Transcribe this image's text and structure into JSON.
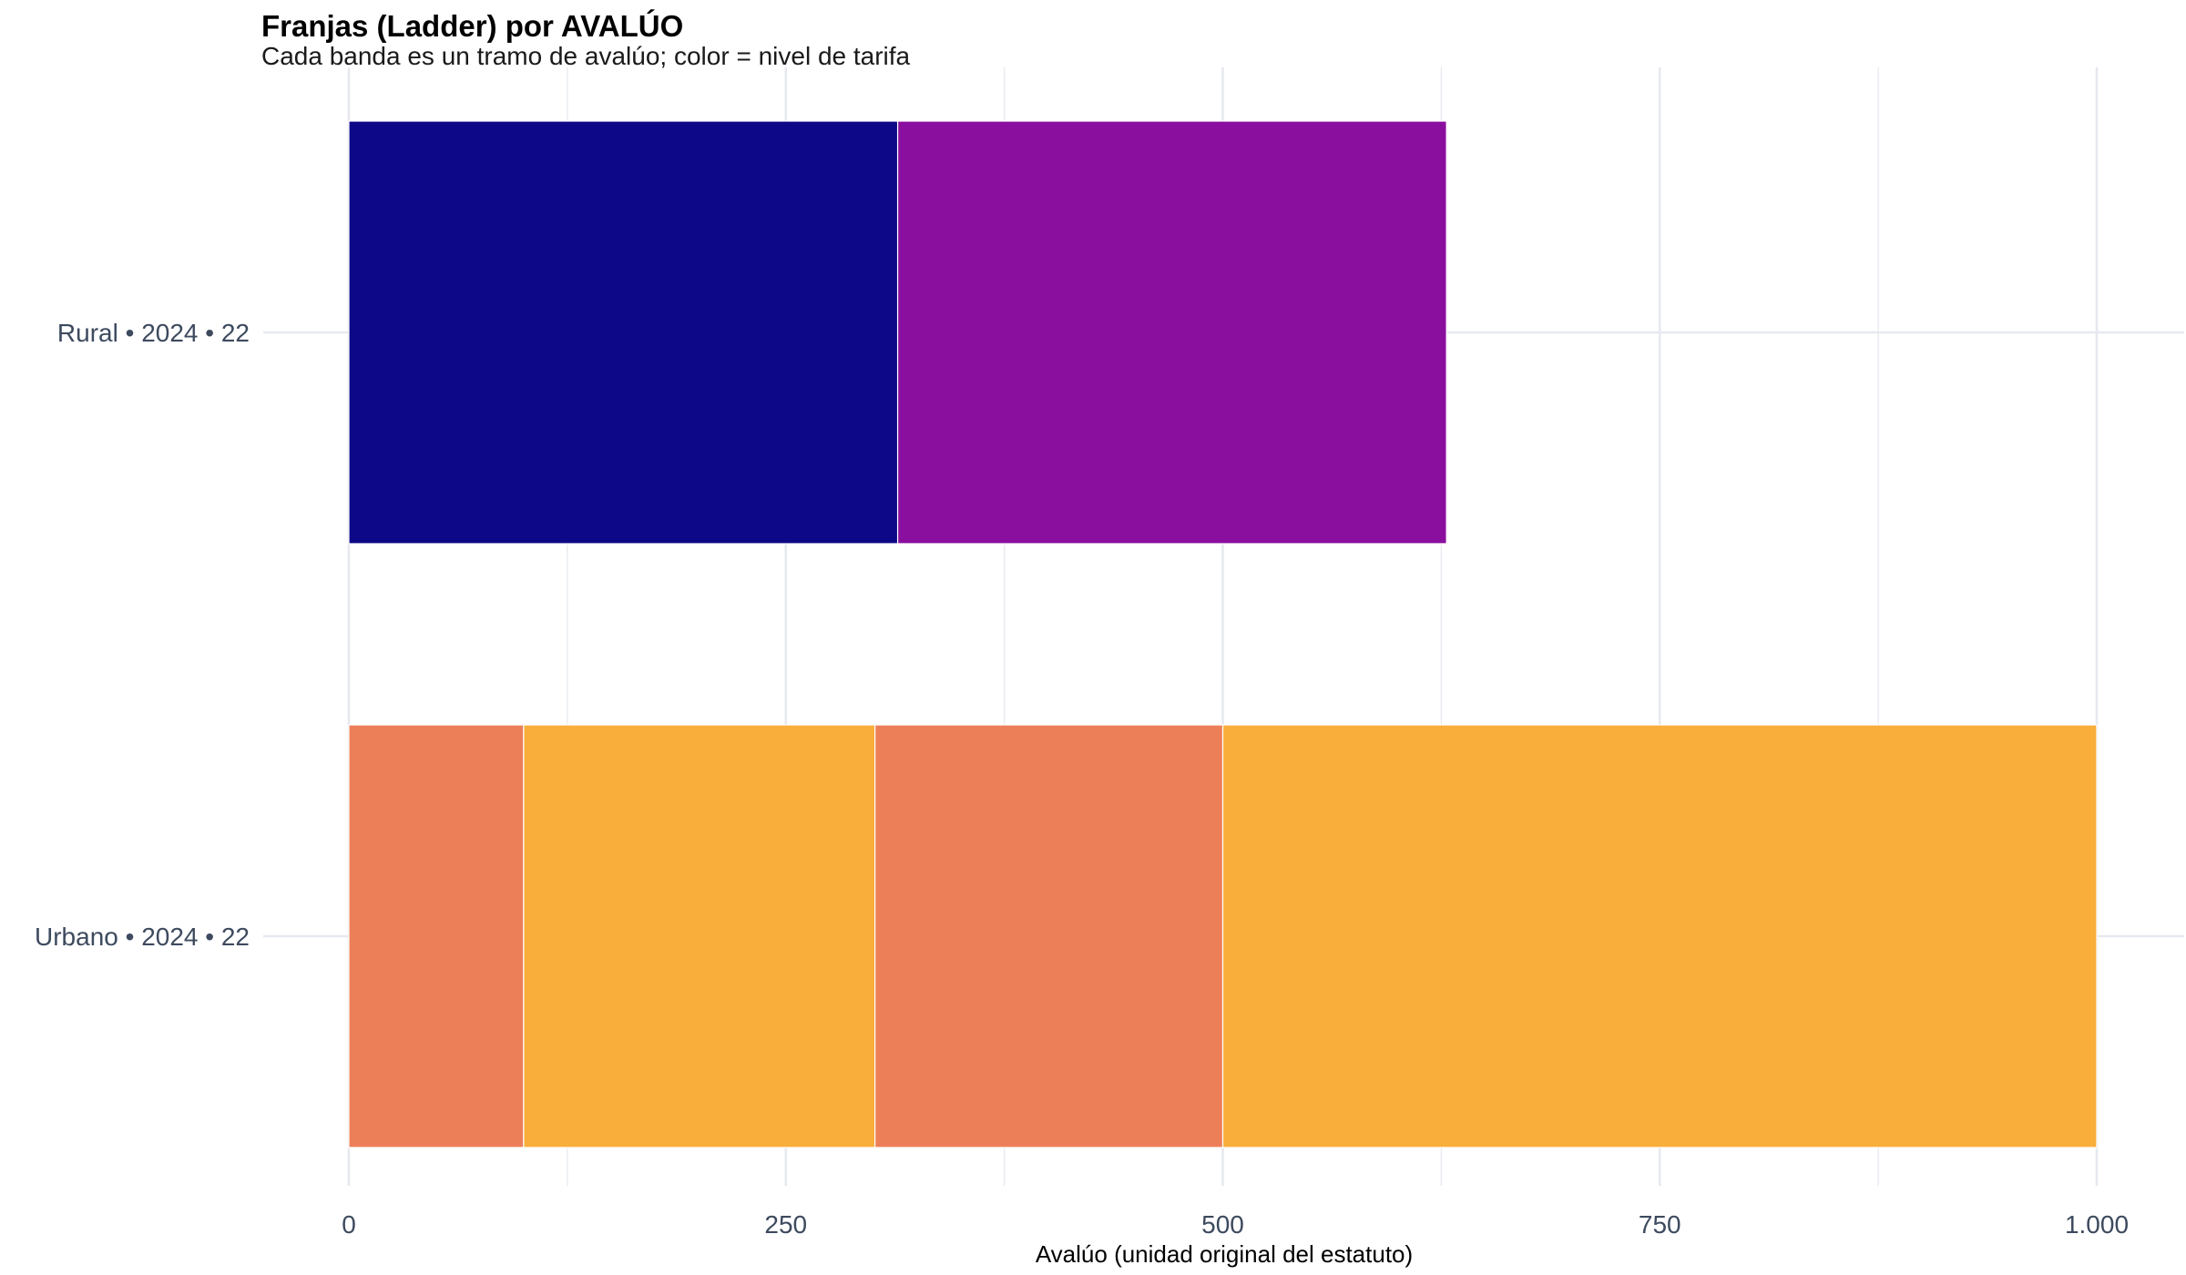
{
  "chart_data": {
    "type": "bar",
    "orientation": "horizontal",
    "stacked": true,
    "title": "Franjas (Ladder) por AVALÚO",
    "subtitle": "Cada banda es un tramo de avalúo; color = nivel de tarifa",
    "xlabel": "Avalúo (unidad original del estatuto)",
    "ylabel": "",
    "xlim": [
      0,
      1000
    ],
    "x_ticks": [
      {
        "value": 0,
        "label": "0"
      },
      {
        "value": 250,
        "label": "250"
      },
      {
        "value": 500,
        "label": "500"
      },
      {
        "value": 750,
        "label": "750"
      },
      {
        "value": 1000,
        "label": "1.000"
      }
    ],
    "grid": true,
    "legend": "none",
    "categories": [
      "Rural • 2024 • 22",
      "Urbano • 2024 • 22"
    ],
    "bands": [
      {
        "category": "Rural • 2024 • 22",
        "start": 0,
        "end": 314,
        "color": "#0d0887"
      },
      {
        "category": "Rural • 2024 • 22",
        "start": 314,
        "end": 628,
        "color": "#8a0f9f"
      },
      {
        "category": "Urbano • 2024 • 22",
        "start": 0,
        "end": 100,
        "color": "#ed7f58"
      },
      {
        "category": "Urbano • 2024 • 22",
        "start": 100,
        "end": 301,
        "color": "#f9ae3b"
      },
      {
        "category": "Urbano • 2024 • 22",
        "start": 301,
        "end": 500,
        "color": "#ed7f58"
      },
      {
        "category": "Urbano • 2024 • 22",
        "start": 500,
        "end": 1000,
        "color": "#f9ae3b"
      }
    ],
    "colors": {
      "grid": "#e6e9ef",
      "tick_text": "#3d4a5e",
      "band_border": "#ffffff"
    }
  }
}
